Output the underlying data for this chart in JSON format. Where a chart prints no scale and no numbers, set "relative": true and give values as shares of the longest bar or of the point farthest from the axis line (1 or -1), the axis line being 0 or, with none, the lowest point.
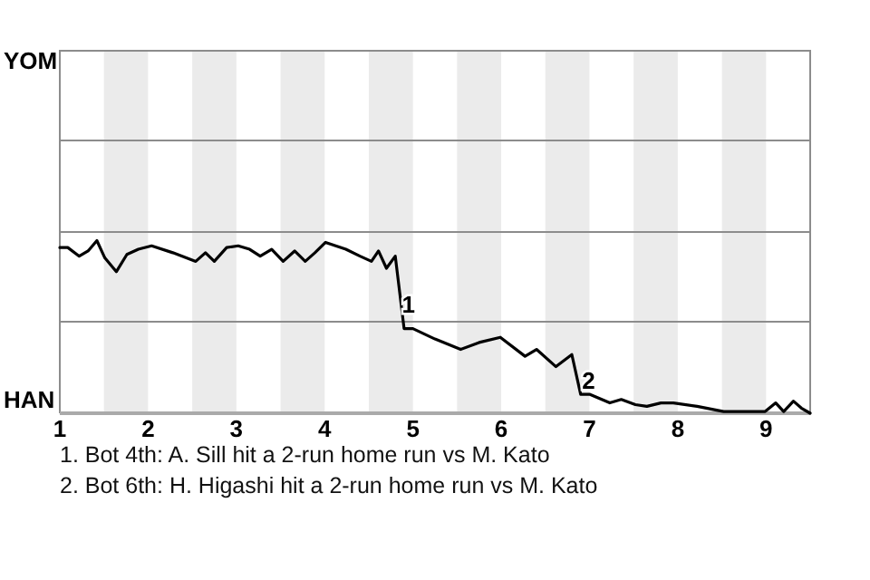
{
  "chart_data": {
    "type": "line",
    "relative": true,
    "x": [
      1,
      1.09,
      1.22,
      1.32,
      1.42,
      1.51,
      1.64,
      1.76,
      1.89,
      2.04,
      2.28,
      2.54,
      2.65,
      2.75,
      2.89,
      3.02,
      3.15,
      3.27,
      3.4,
      3.53,
      3.66,
      3.78,
      3.89,
      4.01,
      4.24,
      4.4,
      4.53,
      4.61,
      4.7,
      4.8,
      4.9,
      5,
      5.25,
      5.54,
      5.75,
      5.99,
      6.27,
      6.4,
      6.62,
      6.8,
      6.9,
      7,
      7.23,
      7.36,
      7.52,
      7.65,
      7.81,
      7.95,
      8.22,
      8.52,
      8.99,
      9.11,
      9.2,
      9.31,
      9.4,
      9.5
    ],
    "series": [
      {
        "color": "#000000",
        "values": [
          0.96,
          0.96,
          0.91,
          0.94,
          1,
          0.9,
          0.82,
          0.92,
          0.95,
          0.97,
          0.93,
          0.88,
          0.93,
          0.88,
          0.96,
          0.97,
          0.95,
          0.91,
          0.95,
          0.88,
          0.94,
          0.88,
          0.93,
          0.99,
          0.95,
          0.91,
          0.88,
          0.94,
          0.84,
          0.91,
          0.49,
          0.49,
          0.43,
          0.37,
          0.41,
          0.44,
          0.33,
          0.37,
          0.27,
          0.34,
          0.11,
          0.11,
          0.06,
          0.08,
          0.05,
          0.04,
          0.06,
          0.06,
          0.04,
          0.01,
          0.01,
          0.06,
          0.01,
          0.07,
          0.03,
          0
        ]
      }
    ],
    "xlim": [
      1,
      9.5
    ],
    "xticks": [
      1,
      2,
      3,
      4,
      5,
      6,
      7,
      8,
      9
    ],
    "marker": "none",
    "line_style": "solid",
    "ref_lines": [
      {
        "axis": "y",
        "value": 0.53,
        "color": "#8c8c8c"
      },
      {
        "axis": "y",
        "value": 1.05,
        "color": "#8c8c8c"
      },
      {
        "axis": "y",
        "value": 1.58,
        "color": "#8c8c8c"
      }
    ],
    "bands": [
      {
        "axis": "x",
        "from": 1.5,
        "to": 2,
        "color": "#ebebeb"
      },
      {
        "axis": "x",
        "from": 2.5,
        "to": 3,
        "color": "#ebebeb"
      },
      {
        "axis": "x",
        "from": 3.5,
        "to": 4,
        "color": "#ebebeb"
      },
      {
        "axis": "x",
        "from": 4.5,
        "to": 5,
        "color": "#ebebeb"
      },
      {
        "axis": "x",
        "from": 5.5,
        "to": 6,
        "color": "#ebebeb"
      },
      {
        "axis": "x",
        "from": 6.5,
        "to": 7,
        "color": "#ebebeb"
      },
      {
        "axis": "x",
        "from": 7.5,
        "to": 8,
        "color": "#ebebeb"
      },
      {
        "axis": "x",
        "from": 8.5,
        "to": 9,
        "color": "#ebebeb"
      }
    ],
    "annotations": [
      "YOM",
      "HAN",
      {
        "text": "1",
        "x": 4.95,
        "y": 0.63
      },
      {
        "text": "2",
        "x": 6.99,
        "y": 0.19
      },
      "1. Bot 4th: A. Sill hit a 2-run home run vs M. Kato",
      "2. Bot 6th: H. Higashi hit a 2-run home run vs M. Kato"
    ]
  }
}
